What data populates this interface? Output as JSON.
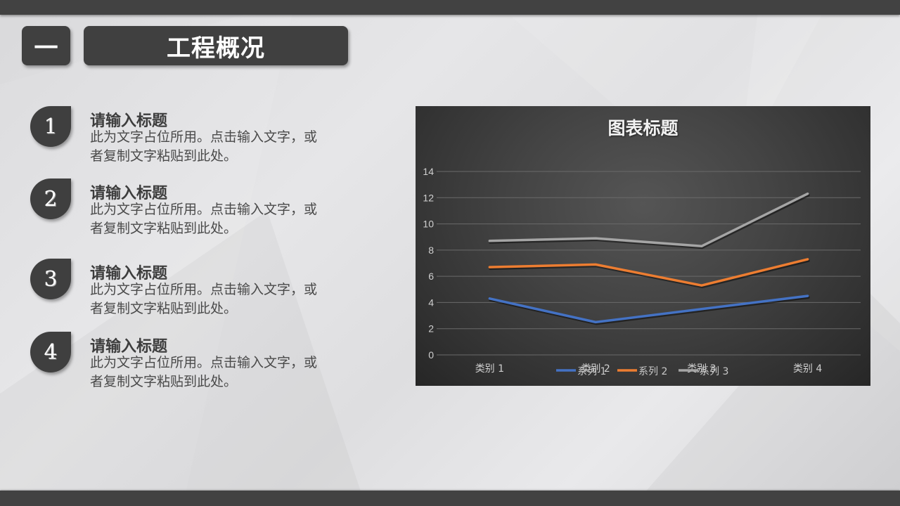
{
  "header": {
    "section_number": "一",
    "section_title": "工程概况"
  },
  "items": [
    {
      "number": "1",
      "title": "请输入标题",
      "desc": "此为文字占位所用。点击输入文字，或者复制文字粘贴到此处。"
    },
    {
      "number": "2",
      "title": "请输入标题",
      "desc": "此为文字占位所用。点击输入文字，或者复制文字粘贴到此处。"
    },
    {
      "number": "3",
      "title": "请输入标题",
      "desc": "此为文字占位所用。点击输入文字，或者复制文字粘贴到此处。"
    },
    {
      "number": "4",
      "title": "请输入标题",
      "desc": "此为文字占位所用。点击输入文字，或者复制文字粘贴到此处。"
    }
  ],
  "colors": {
    "bar": "#424242",
    "badge": "#3f3f3f",
    "series1": "#4472c4",
    "series2": "#ed7d31",
    "series3": "#a5a5a5"
  },
  "chart_data": {
    "type": "line",
    "title": "图表标题",
    "categories": [
      "类别 1",
      "类别 2",
      "类别 3",
      "类别 4"
    ],
    "series": [
      {
        "name": "系列 1",
        "values": [
          4.3,
          2.5,
          3.5,
          4.5
        ],
        "color": "#4472c4"
      },
      {
        "name": "系列 2",
        "values": [
          6.7,
          6.9,
          5.3,
          7.3
        ],
        "color": "#ed7d31"
      },
      {
        "name": "系列 3",
        "values": [
          8.7,
          8.9,
          8.3,
          12.3
        ],
        "color": "#a5a5a5"
      }
    ],
    "yticks": [
      0,
      2,
      4,
      6,
      8,
      10,
      12,
      14
    ],
    "ylim": [
      0,
      14
    ],
    "xlabel": "",
    "ylabel": "",
    "grid": true,
    "legend_position": "bottom"
  }
}
